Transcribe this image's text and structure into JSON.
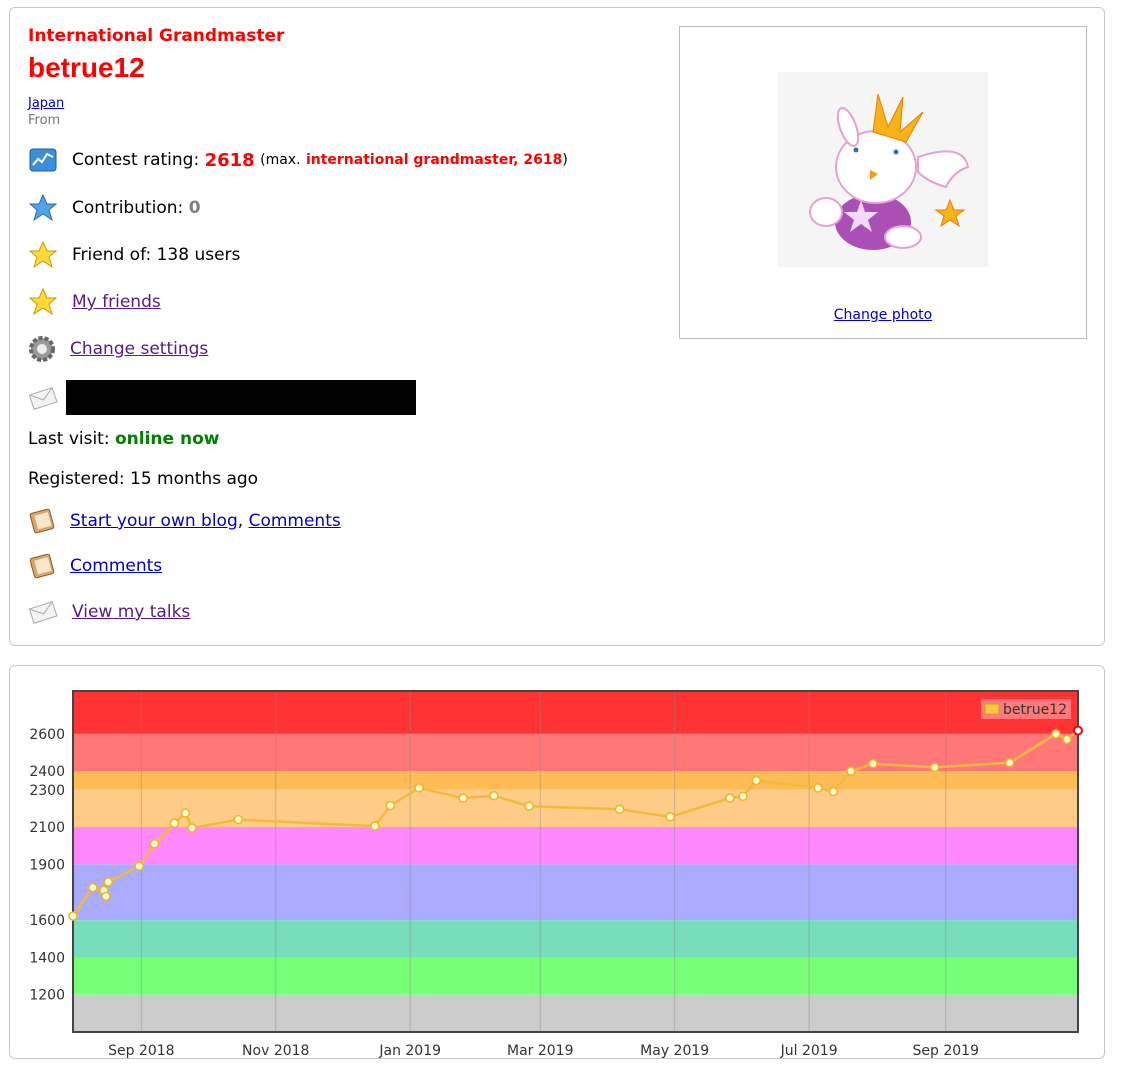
{
  "profile": {
    "rank": "International Grandmaster",
    "handle": "betrue12",
    "country": "Japan",
    "from_label": "From",
    "rating_label": "Contest rating:",
    "rating": "2618",
    "max_open": "(max.",
    "max_rank": "international grandmaster, 2618",
    "max_close": ")",
    "contribution_label": "Contribution:",
    "contribution": "0",
    "friend_of": "Friend of: 138 users",
    "my_friends": "My friends",
    "change_settings": "Change settings",
    "last_visit_label": "Last visit:",
    "last_visit": "online now",
    "registered": "Registered: 15 months ago",
    "start_blog": "Start your own blog",
    "comments_inline": "Comments",
    "comma": ",",
    "comments": "Comments",
    "view_talks": "View my talks",
    "change_photo": "Change photo"
  },
  "icons": {
    "rating": "rating-chart-icon",
    "contribution": "blue-star-icon",
    "friend_of": "yellow-star-icon",
    "my_friends": "yellow-star-icon",
    "settings": "gear-icon",
    "email": "envelope-icon",
    "blog": "notebook-icon",
    "comments": "notebook-icon",
    "talks": "envelope-icon"
  },
  "colors": {
    "rank_red": "#ff0000",
    "online_green": "#008000",
    "series": "#f5c842"
  },
  "chart_data": {
    "type": "line",
    "series": [
      {
        "name": "betrue12",
        "points": [
          [
            "2018-08-01",
            1622
          ],
          [
            "2018-08-10",
            1775
          ],
          [
            "2018-08-15",
            1760
          ],
          [
            "2018-08-16",
            1728
          ],
          [
            "2018-08-17",
            1805
          ],
          [
            "2018-08-31",
            1890
          ],
          [
            "2018-09-07",
            2010
          ],
          [
            "2018-09-16",
            2120
          ],
          [
            "2018-09-21",
            2175
          ],
          [
            "2018-09-24",
            2095
          ],
          [
            "2018-10-15",
            2140
          ],
          [
            "2018-12-16",
            2105
          ],
          [
            "2018-12-23",
            2215
          ],
          [
            "2019-01-05",
            2310
          ],
          [
            "2019-01-25",
            2255
          ],
          [
            "2019-02-08",
            2268
          ],
          [
            "2019-02-24",
            2212
          ],
          [
            "2019-04-06",
            2195
          ],
          [
            "2019-04-29",
            2155
          ],
          [
            "2019-05-26",
            2255
          ],
          [
            "2019-06-01",
            2265
          ],
          [
            "2019-06-07",
            2350
          ],
          [
            "2019-07-05",
            2310
          ],
          [
            "2019-07-12",
            2290
          ],
          [
            "2019-07-20",
            2400
          ],
          [
            "2019-07-30",
            2440
          ],
          [
            "2019-08-27",
            2420
          ],
          [
            "2019-09-30",
            2445
          ],
          [
            "2019-10-21",
            2600
          ],
          [
            "2019-10-26",
            2570
          ],
          [
            "2019-10-31",
            2618
          ]
        ]
      }
    ],
    "x_ticks": [
      "Sep 2018",
      "Nov 2018",
      "Jan 2019",
      "Mar 2019",
      "May 2019",
      "Jul 2019",
      "Sep 2019"
    ],
    "y_ticks": [
      1200,
      1400,
      1600,
      1900,
      2100,
      2300,
      2400,
      2600
    ],
    "ylim": [
      1000,
      2830
    ],
    "xlim": [
      "2018-08-01",
      "2019-10-31"
    ],
    "bands": [
      {
        "from": 1000,
        "to": 1200,
        "color": "#cccccc"
      },
      {
        "from": 1200,
        "to": 1400,
        "color": "#77ff77"
      },
      {
        "from": 1400,
        "to": 1600,
        "color": "#77ddbb"
      },
      {
        "from": 1600,
        "to": 1900,
        "color": "#aaaaff"
      },
      {
        "from": 1900,
        "to": 2100,
        "color": "#ff88ff"
      },
      {
        "from": 2100,
        "to": 2300,
        "color": "#ffcc88"
      },
      {
        "from": 2300,
        "to": 2400,
        "color": "#ffbb55"
      },
      {
        "from": 2400,
        "to": 2600,
        "color": "#ff7777"
      },
      {
        "from": 2600,
        "to": 2830,
        "color": "#ff3333"
      }
    ],
    "grid": true,
    "legend": "top-right"
  }
}
